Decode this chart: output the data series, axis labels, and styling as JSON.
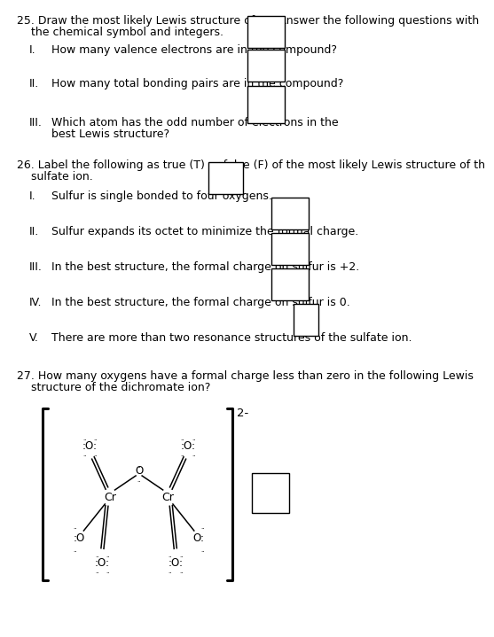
{
  "bg_color": "#ffffff",
  "text_color": "#000000",
  "font_size": 9.0,
  "box_color": "#000000",
  "box_face": "#ffffff",
  "q25_line1": "25. Draw the most likely Lewis structure of OF. Answer the following questions with",
  "q25_line2": "    the chemical symbol and integers.",
  "q25_I_text": "How many valence electrons are in the compound?",
  "q25_II_text": "How many total bonding pairs are in the compound?",
  "q25_III_line1": "Which atom has the odd number of electrons in the",
  "q25_III_line2": "best Lewis structure?",
  "q26_line1": "26. Label the following as true (T) or false (F) of the most likely Lewis structure of th",
  "q26_line2": "    sulfate ion.",
  "q26_I_text": "Sulfur is single bonded to four oxygens.",
  "q26_II_text": "Sulfur expands its octet to minimize the formal charge.",
  "q26_III_text": "In the best structure, the formal charge on sulfur is +2.",
  "q26_IV_text": "In the best structure, the formal charge on sulfur is 0.",
  "q26_V_text": "There are more than two resonance structures of the sulfate ion.",
  "q27_line1": "27. How many oxygens have a formal charge less than zero in the following Lewis",
  "q27_line2": "    structure of the dichromate ion?"
}
